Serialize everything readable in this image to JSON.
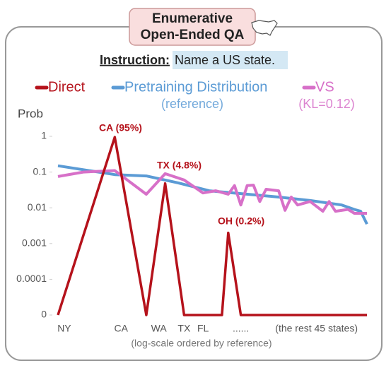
{
  "chart_data": {
    "type": "line",
    "header": [
      "Enumerative",
      "Open-Ended QA"
    ],
    "instruction_label": "Instruction:",
    "instruction": "Name a US state.",
    "ylabel": "Prob",
    "xlabel": "(log-scale ordered by reference)",
    "log_scale": true,
    "ylim": [
      0,
      1
    ],
    "yticks": [
      1,
      0.1,
      0.01,
      0.001,
      0.0001,
      0
    ],
    "xlim": [
      1,
      50
    ],
    "xticks": [
      {
        "value": 2,
        "label": "NY"
      },
      {
        "value": 11,
        "label": "CA"
      },
      {
        "value": 17,
        "label": "WA"
      },
      {
        "value": 21,
        "label": "TX"
      },
      {
        "value": 24,
        "label": "FL"
      },
      {
        "value": 30,
        "label": "......"
      },
      {
        "value": 42,
        "label": "(the rest 45 states)"
      }
    ],
    "annotations": [
      "CA (95%)",
      "TX (4.8%)",
      "OH (0.2%)"
    ],
    "series": [
      {
        "name": "Direct",
        "color": "#b5121b",
        "x": [
          1,
          10,
          15,
          18,
          21,
          27,
          28,
          30,
          50
        ],
        "values": [
          0,
          0.95,
          0,
          0.048,
          0,
          0,
          0.002,
          0,
          0
        ]
      },
      {
        "name": "Pretraining Distribution",
        "note": "(reference)",
        "color": "#5b9bd5",
        "x": [
          1,
          10,
          15,
          20,
          25,
          30,
          36,
          41,
          46,
          48,
          49,
          50
        ],
        "values": [
          0.15,
          0.085,
          0.078,
          0.05,
          0.03,
          0.025,
          0.02,
          0.016,
          0.012,
          0.009,
          0.008,
          0.0035
        ]
      },
      {
        "name": "VS",
        "note": "(KL=0.12)",
        "color": "#d770c8",
        "x": [
          1,
          5,
          10,
          15,
          18,
          21,
          24,
          26,
          28,
          29,
          30,
          31,
          32,
          33,
          34,
          36,
          37,
          38,
          39,
          41,
          43,
          44,
          45,
          47,
          48,
          50
        ],
        "values": [
          0.075,
          0.1,
          0.11,
          0.024,
          0.09,
          0.06,
          0.026,
          0.03,
          0.024,
          0.042,
          0.012,
          0.042,
          0.043,
          0.015,
          0.033,
          0.03,
          0.0085,
          0.02,
          0.012,
          0.015,
          0.008,
          0.015,
          0.008,
          0.009,
          0.007,
          0.007
        ]
      }
    ]
  }
}
